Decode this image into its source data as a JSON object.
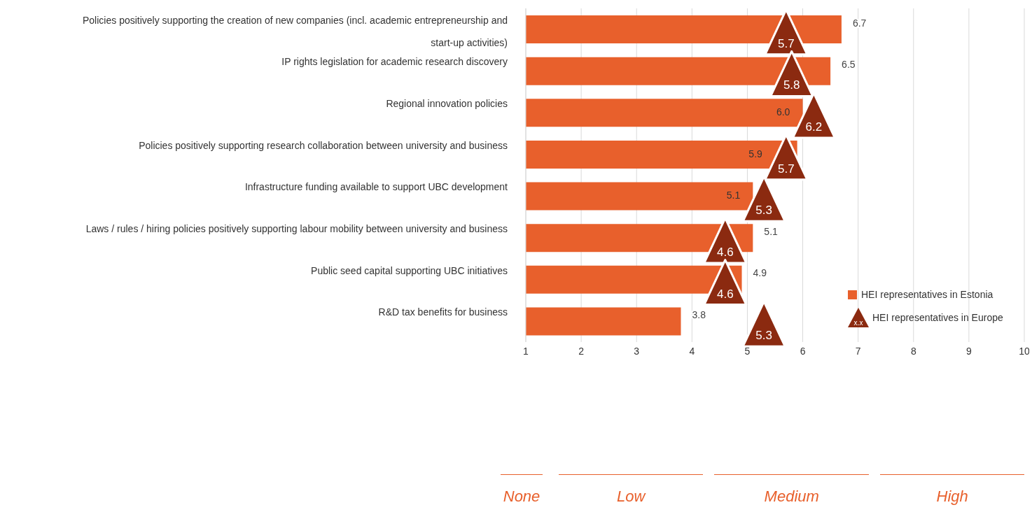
{
  "chart_data": {
    "type": "bar",
    "orientation": "horizontal",
    "categories": [
      "Policies positively supporting the creation of new companies (incl. academic entrepreneurship and start-up activities)",
      "IP rights legislation for academic research discovery",
      "Regional innovation policies",
      "Policies positively supporting research collaboration between university and business",
      "Infrastructure funding available to support UBC development",
      "Laws / rules / hiring policies positively supporting labour mobility between university and business",
      "Public seed capital supporting UBC initiatives",
      "R&D tax benefits for business"
    ],
    "series": [
      {
        "name": "HEI representatives in Estonia",
        "color": "#e8602c",
        "values": [
          6.7,
          6.5,
          6.0,
          5.9,
          5.1,
          5.1,
          4.9,
          3.8
        ],
        "value_labels": [
          "6.7",
          "6.5",
          "6.0",
          "5.9",
          "5.1",
          "5.1",
          "4.9",
          "3.8"
        ]
      },
      {
        "name": "HEI representatives in Europe",
        "type": "scatter",
        "color": "#8b2a10",
        "marker": "triangle",
        "values": [
          5.7,
          5.8,
          6.2,
          5.7,
          5.3,
          4.6,
          4.6,
          5.3
        ],
        "value_labels": [
          "5.7",
          "5.8",
          "6.2",
          "5.7",
          "5.3",
          "4.6",
          "4.6",
          "5.3"
        ]
      }
    ],
    "xlim": [
      1,
      10
    ],
    "xticks": [
      1,
      2,
      3,
      4,
      5,
      6,
      7,
      8,
      9,
      10
    ],
    "grid": "x",
    "legend": "right",
    "annotations": [
      "None",
      "Low",
      "Medium",
      "High",
      "x.x"
    ]
  }
}
